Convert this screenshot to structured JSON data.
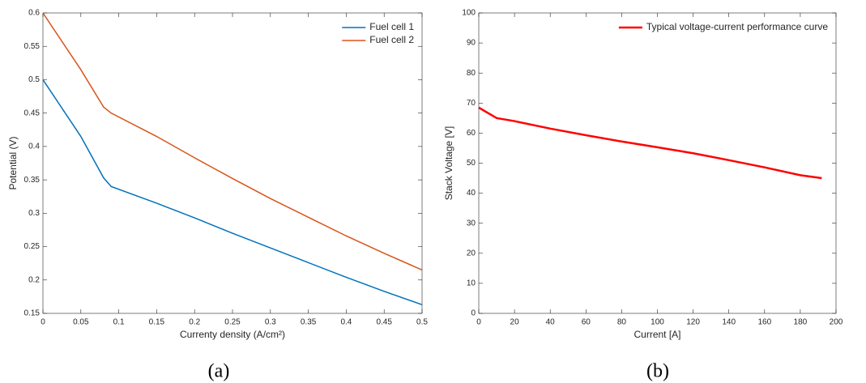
{
  "chart_data": [
    {
      "type": "line",
      "caption": "(a)",
      "xlabel": "Currenty density (A/cm²)",
      "ylabel": "Potential (V)",
      "x": [
        0,
        0.05,
        0.08,
        0.09,
        0.15,
        0.2,
        0.25,
        0.3,
        0.35,
        0.4,
        0.45,
        0.5
      ],
      "series": [
        {
          "name": "Fuel cell 1",
          "color": "#0072bd",
          "values": [
            0.5,
            0.415,
            0.353,
            0.34,
            0.315,
            0.293,
            0.27,
            0.248,
            0.226,
            0.204,
            0.183,
            0.163
          ]
        },
        {
          "name": "Fuel cell 2",
          "color": "#d95319",
          "values": [
            0.6,
            0.515,
            0.459,
            0.45,
            0.415,
            0.383,
            0.352,
            0.322,
            0.294,
            0.266,
            0.24,
            0.215
          ]
        }
      ],
      "xlim": [
        0,
        0.5
      ],
      "xticks": [
        0,
        0.05,
        0.1,
        0.15,
        0.2,
        0.25,
        0.3,
        0.35,
        0.4,
        0.45,
        0.5
      ],
      "ylim": [
        0.15,
        0.6
      ],
      "yticks": [
        0.15,
        0.2,
        0.25,
        0.3,
        0.35,
        0.4,
        0.45,
        0.5,
        0.55,
        0.6
      ],
      "legend": "top-right",
      "line_width": 1.5
    },
    {
      "type": "line",
      "caption": "(b)",
      "xlabel": "Current [A]",
      "ylabel": "Stack Voltage [V]",
      "x": [
        0,
        10,
        20,
        40,
        60,
        80,
        100,
        120,
        140,
        160,
        180,
        192
      ],
      "series": [
        {
          "name": "Typical voltage-current performance curve",
          "color": "#ff0000",
          "values": [
            68.5,
            65,
            64,
            61.5,
            59.3,
            57.2,
            55.3,
            53.3,
            51,
            48.6,
            46,
            45
          ]
        }
      ],
      "xlim": [
        0,
        200
      ],
      "xticks": [
        0,
        20,
        40,
        60,
        80,
        100,
        120,
        140,
        160,
        180,
        200
      ],
      "ylim": [
        0,
        100
      ],
      "yticks": [
        0,
        10,
        20,
        30,
        40,
        50,
        60,
        70,
        80,
        90,
        100
      ],
      "legend": "top-right",
      "line_width": 2.5
    }
  ]
}
